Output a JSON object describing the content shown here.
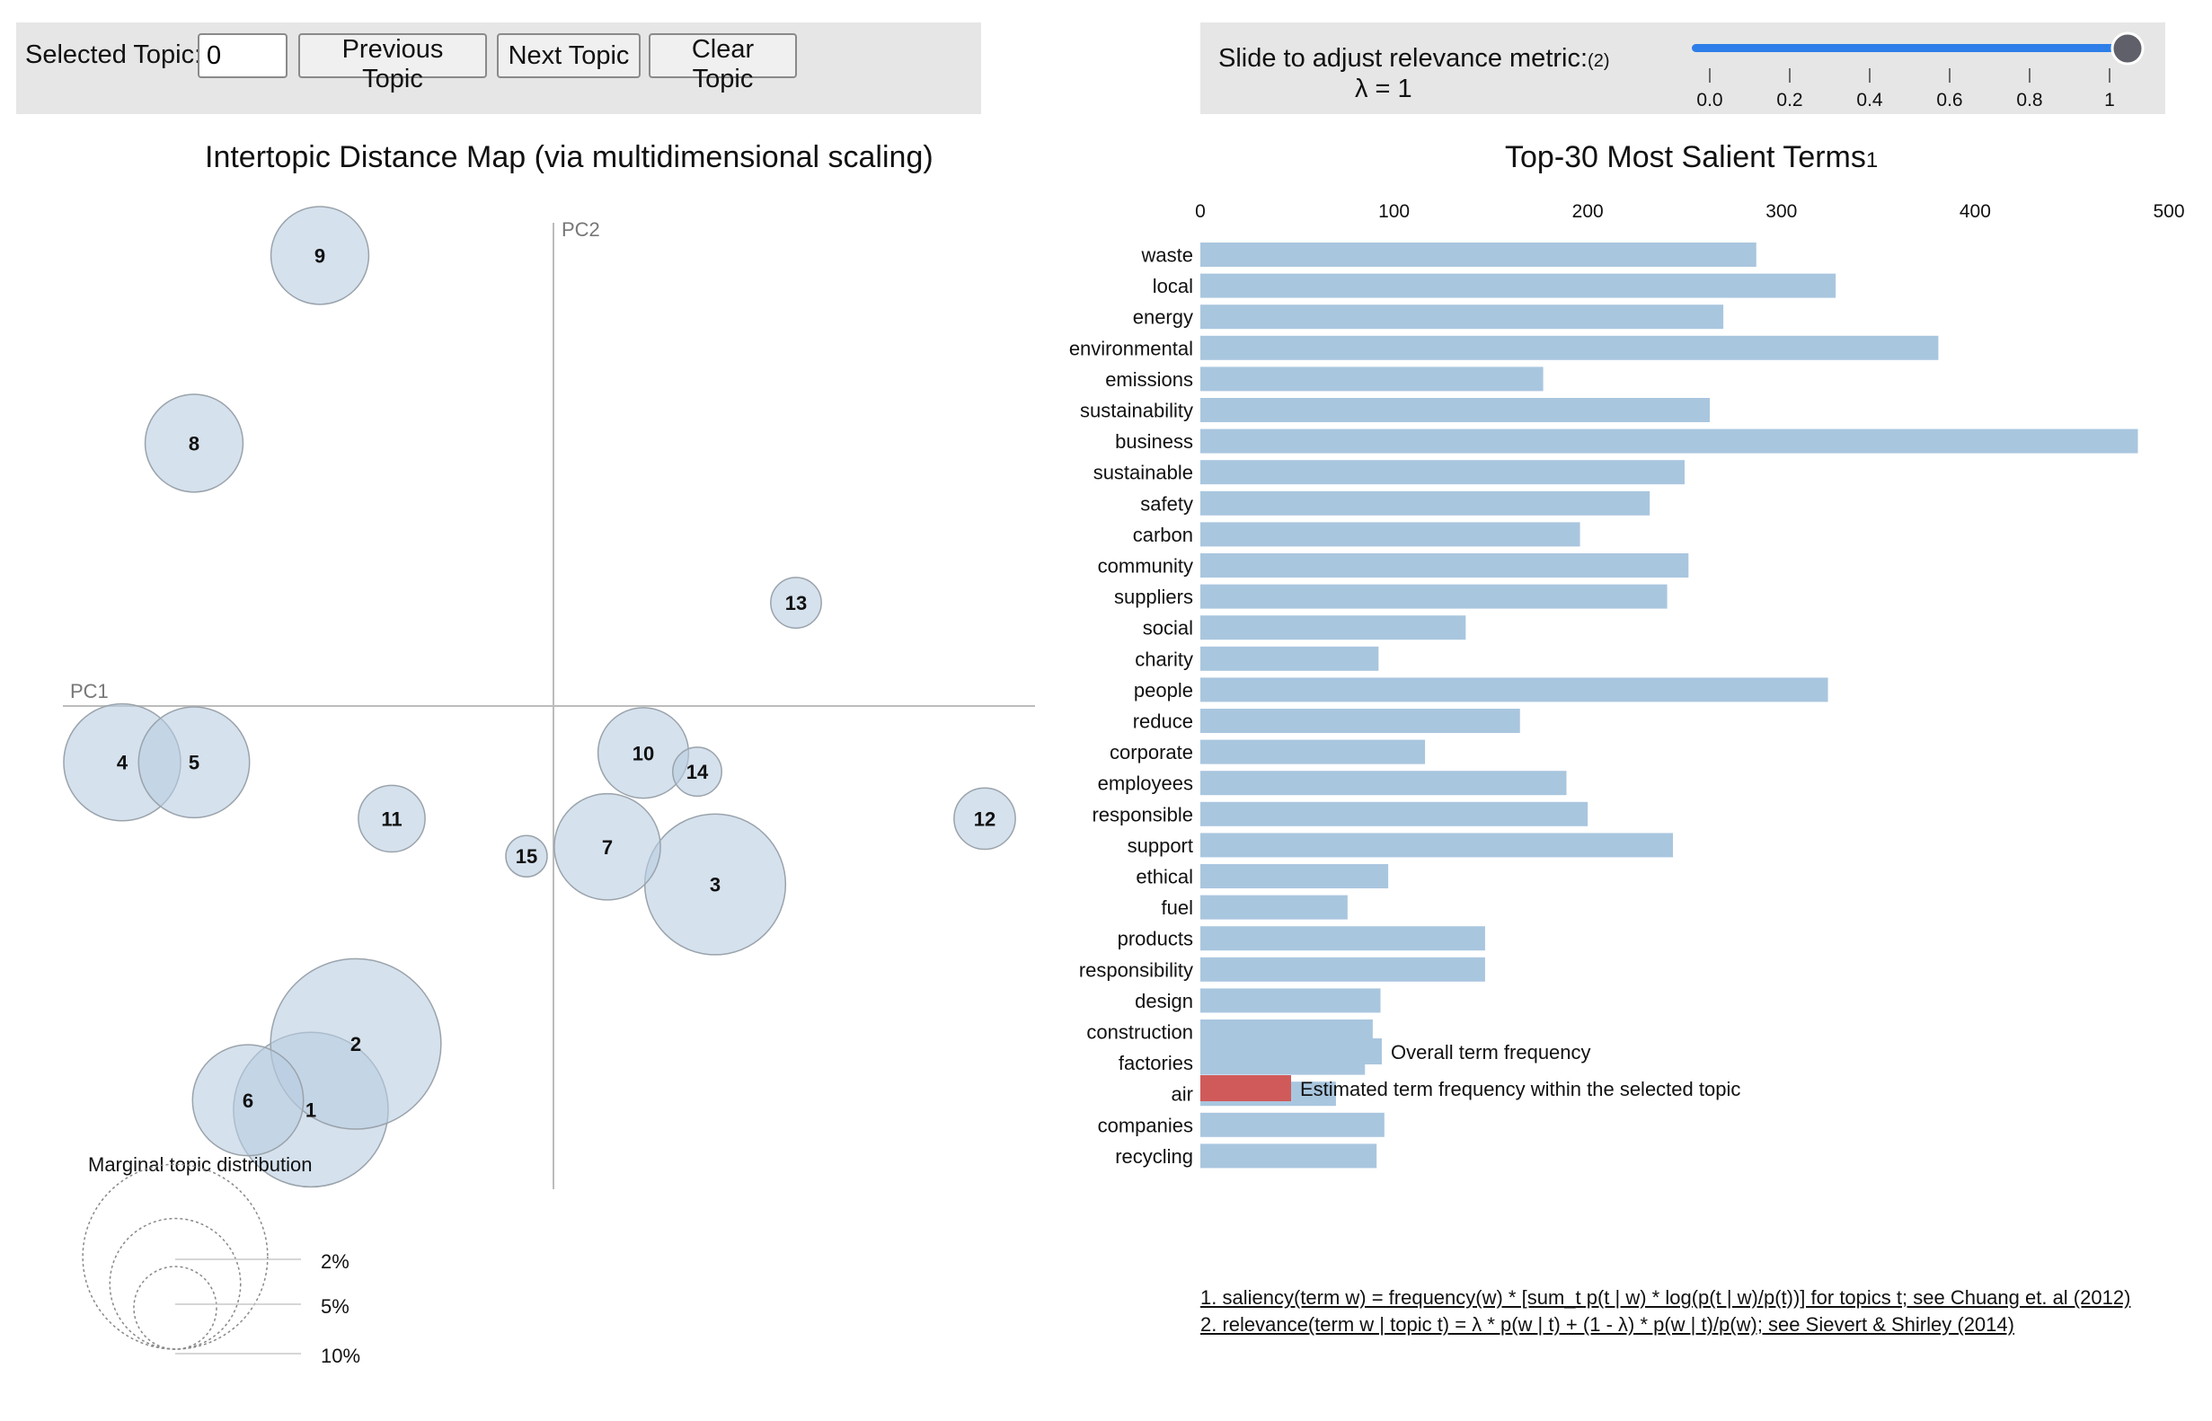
{
  "controls": {
    "selected_topic_label": "Selected Topic:",
    "selected_topic_value": "0",
    "previous_label": "Previous Topic",
    "next_label": "Next Topic",
    "clear_label": "Clear Topic",
    "slider_label": "Slide to adjust relevance metric:",
    "slider_label_sup": "(2)",
    "lambda_text": "λ = 1",
    "slider_value": 1,
    "slider_ticks": [
      "0.0",
      "0.2",
      "0.4",
      "0.6",
      "0.8",
      "1"
    ]
  },
  "colors": {
    "panel_bg": "#e6e6e6",
    "bubble_fill": "#b9cde1",
    "bar_overall": "#a9c6df",
    "bar_selected": "#d05a5a",
    "slider_track": "#2d7ee8",
    "slider_thumb": "#5f6069"
  },
  "chart_data": [
    {
      "type": "scatter",
      "title": "Intertopic Distance Map (via multidimensional scaling)",
      "xlabel": "PC1",
      "ylabel": "PC2",
      "bubble_size_meaning": "marginal topic distribution (%)",
      "topics": [
        {
          "label": "1",
          "x": -0.27,
          "y": -0.43,
          "size": 7.0
        },
        {
          "label": "2",
          "x": -0.22,
          "y": -0.36,
          "size": 8.5
        },
        {
          "label": "3",
          "x": 0.18,
          "y": -0.19,
          "size": 5.8
        },
        {
          "label": "4",
          "x": -0.48,
          "y": -0.06,
          "size": 4.0
        },
        {
          "label": "5",
          "x": -0.4,
          "y": -0.06,
          "size": 3.6
        },
        {
          "label": "6",
          "x": -0.34,
          "y": -0.42,
          "size": 3.6
        },
        {
          "label": "7",
          "x": 0.06,
          "y": -0.15,
          "size": 3.3
        },
        {
          "label": "8",
          "x": -0.4,
          "y": 0.28,
          "size": 2.8
        },
        {
          "label": "9",
          "x": -0.26,
          "y": 0.48,
          "size": 2.8
        },
        {
          "label": "10",
          "x": 0.1,
          "y": -0.05,
          "size": 2.4
        },
        {
          "label": "11",
          "x": -0.18,
          "y": -0.12,
          "size": 1.3
        },
        {
          "label": "12",
          "x": 0.48,
          "y": -0.12,
          "size": 1.1
        },
        {
          "label": "13",
          "x": 0.27,
          "y": 0.11,
          "size": 0.75
        },
        {
          "label": "14",
          "x": 0.16,
          "y": -0.07,
          "size": 0.7
        },
        {
          "label": "15",
          "x": -0.03,
          "y": -0.16,
          "size": 0.5
        }
      ],
      "legend": {
        "title": "Marginal topic distribution",
        "entries": [
          {
            "label": "2%",
            "value": 2
          },
          {
            "label": "5%",
            "value": 5
          },
          {
            "label": "10%",
            "value": 10
          }
        ]
      }
    },
    {
      "type": "bar",
      "orientation": "horizontal",
      "title": "Top-30 Most Salient Terms",
      "title_sup": "1",
      "xlim": [
        0,
        500
      ],
      "xticks": [
        0,
        100,
        200,
        300,
        400,
        500
      ],
      "categories": [
        "waste",
        "local",
        "energy",
        "environmental",
        "emissions",
        "sustainability",
        "business",
        "sustainable",
        "safety",
        "carbon",
        "community",
        "suppliers",
        "social",
        "charity",
        "people",
        "reduce",
        "corporate",
        "employees",
        "responsible",
        "support",
        "ethical",
        "fuel",
        "products",
        "responsibility",
        "design",
        "construction",
        "factories",
        "air",
        "companies",
        "recycling"
      ],
      "series": [
        {
          "name": "Overall term frequency",
          "values": [
            287,
            328,
            270,
            381,
            177,
            263,
            484,
            250,
            232,
            196,
            252,
            241,
            137,
            92,
            324,
            165,
            116,
            189,
            200,
            244,
            97,
            76,
            147,
            147,
            93,
            89,
            85,
            70,
            95,
            91
          ]
        }
      ],
      "legend": [
        {
          "label": "Overall term frequency",
          "color": "#a9c6df"
        },
        {
          "label": "Estimated term frequency within the selected topic",
          "color": "#d05a5a"
        }
      ]
    }
  ],
  "footnotes": {
    "saliency": "1. saliency(term w) = frequency(w) * [sum_t p(t | w) * log(p(t | w)/p(t))] for topics t; see Chuang et. al (2012)",
    "relevance": "2. relevance(term w | topic t) = λ * p(w | t) + (1 - λ) * p(w | t)/p(w); see Sievert & Shirley (2014)"
  }
}
